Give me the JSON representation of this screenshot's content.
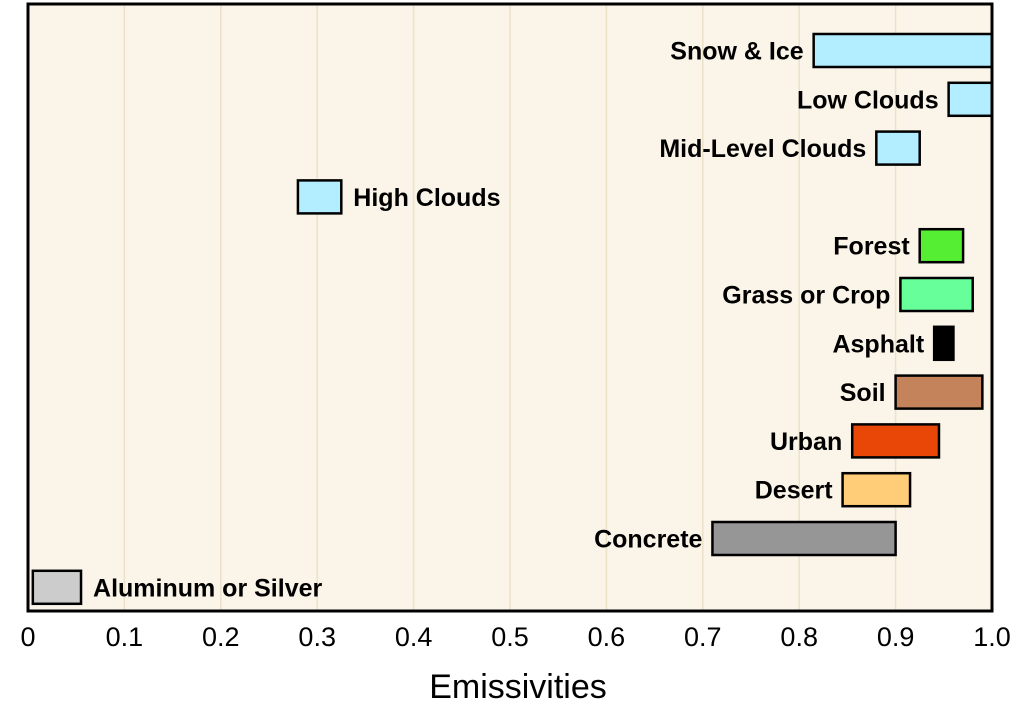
{
  "colors": {
    "plot_background": "#fbf4e8",
    "gridline": "#ece2c8",
    "bar_stroke": "#000000"
  },
  "chart_data": {
    "type": "bar",
    "orientation": "horizontal",
    "title": "",
    "xlabel": "Emissivities",
    "ylabel": "",
    "xlim": [
      0,
      1.0
    ],
    "grid": "vertical gridlines at each 0.1",
    "x_ticks": [
      "0",
      "0.1",
      "0.2",
      "0.3",
      "0.4",
      "0.5",
      "0.6",
      "0.7",
      "0.8",
      "0.9",
      "1.0"
    ],
    "ranges": [
      {
        "label": "Snow & Ice",
        "min": 0.815,
        "max": 1.0,
        "color": "#b2eeff",
        "label_side": "left"
      },
      {
        "label": "Low Clouds",
        "min": 0.955,
        "max": 1.0,
        "color": "#b2eeff",
        "label_side": "left"
      },
      {
        "label": "Mid-Level Clouds",
        "min": 0.88,
        "max": 0.925,
        "color": "#b2eeff",
        "label_side": "left"
      },
      {
        "label": "High Clouds",
        "min": 0.28,
        "max": 0.325,
        "color": "#b2eeff",
        "label_side": "right"
      },
      {
        "label": "Forest",
        "min": 0.925,
        "max": 0.97,
        "color": "#55ee33",
        "label_side": "left"
      },
      {
        "label": "Grass or Crop",
        "min": 0.905,
        "max": 0.98,
        "color": "#66ff99",
        "label_side": "left"
      },
      {
        "label": "Asphalt",
        "min": 0.94,
        "max": 0.96,
        "color": "#000000",
        "label_side": "left"
      },
      {
        "label": "Soil",
        "min": 0.9,
        "max": 0.99,
        "color": "#c4835a",
        "label_side": "left"
      },
      {
        "label": "Urban",
        "min": 0.855,
        "max": 0.945,
        "color": "#e84708",
        "label_side": "left"
      },
      {
        "label": "Desert",
        "min": 0.845,
        "max": 0.915,
        "color": "#ffcc77",
        "label_side": "left"
      },
      {
        "label": "Concrete",
        "min": 0.71,
        "max": 0.9,
        "color": "#969696",
        "label_side": "left"
      },
      {
        "label": "Aluminum or Silver",
        "min": 0.005,
        "max": 0.055,
        "color": "#cccccc",
        "label_side": "right"
      }
    ]
  }
}
